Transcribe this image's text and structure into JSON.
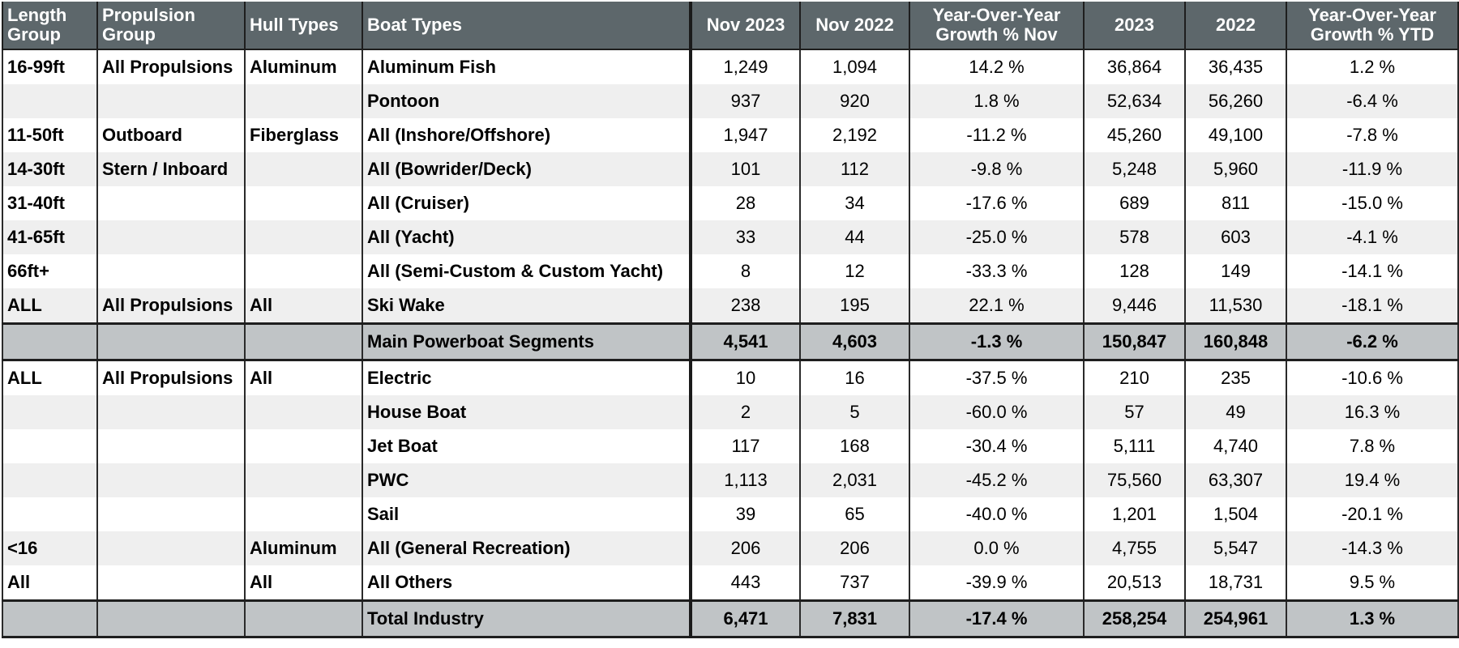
{
  "headers": [
    "Length Group",
    "Propulsion Group",
    "Hull Types",
    "Boat Types",
    "Nov 2023",
    "Nov 2022",
    "Year-Over-Year Growth % Nov",
    "2023",
    "2022",
    "Year-Over-Year Growth % YTD"
  ],
  "rows": [
    {
      "length": "16-99ft",
      "propulsion": "All Propulsions",
      "hull": "Aluminum",
      "boat": "Aluminum Fish",
      "nov2023": "1,249",
      "nov2022": "1,094",
      "yoy_nov": "14.2 %",
      "ytd2023": "36,864",
      "ytd2022": "36,435",
      "yoy_ytd": "1.2 %"
    },
    {
      "length": "",
      "propulsion": "",
      "hull": "",
      "boat": "Pontoon",
      "nov2023": "937",
      "nov2022": "920",
      "yoy_nov": "1.8 %",
      "ytd2023": "52,634",
      "ytd2022": "56,260",
      "yoy_ytd": "-6.4 %"
    },
    {
      "length": "11-50ft",
      "propulsion": "Outboard",
      "hull": "Fiberglass",
      "boat": "All (Inshore/Offshore)",
      "nov2023": "1,947",
      "nov2022": "2,192",
      "yoy_nov": "-11.2 %",
      "ytd2023": "45,260",
      "ytd2022": "49,100",
      "yoy_ytd": "-7.8 %"
    },
    {
      "length": "14-30ft",
      "propulsion": "Stern / Inboard",
      "hull": "",
      "boat": "All (Bowrider/Deck)",
      "nov2023": "101",
      "nov2022": "112",
      "yoy_nov": "-9.8 %",
      "ytd2023": "5,248",
      "ytd2022": "5,960",
      "yoy_ytd": "-11.9 %"
    },
    {
      "length": "31-40ft",
      "propulsion": "",
      "hull": "",
      "boat": "All (Cruiser)",
      "nov2023": "28",
      "nov2022": "34",
      "yoy_nov": "-17.6 %",
      "ytd2023": "689",
      "ytd2022": "811",
      "yoy_ytd": "-15.0 %"
    },
    {
      "length": "41-65ft",
      "propulsion": "",
      "hull": "",
      "boat": "All (Yacht)",
      "nov2023": "33",
      "nov2022": "44",
      "yoy_nov": "-25.0 %",
      "ytd2023": "578",
      "ytd2022": "603",
      "yoy_ytd": "-4.1 %"
    },
    {
      "length": "66ft+",
      "propulsion": "",
      "hull": "",
      "boat": "All (Semi-Custom & Custom Yacht)",
      "nov2023": "8",
      "nov2022": "12",
      "yoy_nov": "-33.3 %",
      "ytd2023": "128",
      "ytd2022": "149",
      "yoy_ytd": "-14.1 %"
    },
    {
      "length": "ALL",
      "propulsion": "All Propulsions",
      "hull": "All",
      "boat": "Ski Wake",
      "nov2023": "238",
      "nov2022": "195",
      "yoy_nov": "22.1 %",
      "ytd2023": "9,446",
      "ytd2022": "11,530",
      "yoy_ytd": "-18.1 %"
    },
    {
      "total": true,
      "length": "",
      "propulsion": "",
      "hull": "",
      "boat": "Main Powerboat Segments",
      "nov2023": "4,541",
      "nov2022": "4,603",
      "yoy_nov": "-1.3 %",
      "ytd2023": "150,847",
      "ytd2022": "160,848",
      "yoy_ytd": "-6.2 %"
    },
    {
      "length": "ALL",
      "propulsion": "All Propulsions",
      "hull": "All",
      "boat": "Electric",
      "nov2023": "10",
      "nov2022": "16",
      "yoy_nov": "-37.5 %",
      "ytd2023": "210",
      "ytd2022": "235",
      "yoy_ytd": "-10.6 %"
    },
    {
      "length": "",
      "propulsion": "",
      "hull": "",
      "boat": "House Boat",
      "nov2023": "2",
      "nov2022": "5",
      "yoy_nov": "-60.0 %",
      "ytd2023": "57",
      "ytd2022": "49",
      "yoy_ytd": "16.3 %"
    },
    {
      "length": "",
      "propulsion": "",
      "hull": "",
      "boat": "Jet Boat",
      "nov2023": "117",
      "nov2022": "168",
      "yoy_nov": "-30.4 %",
      "ytd2023": "5,111",
      "ytd2022": "4,740",
      "yoy_ytd": "7.8 %"
    },
    {
      "length": "",
      "propulsion": "",
      "hull": "",
      "boat": "PWC",
      "nov2023": "1,113",
      "nov2022": "2,031",
      "yoy_nov": "-45.2 %",
      "ytd2023": "75,560",
      "ytd2022": "63,307",
      "yoy_ytd": "19.4 %"
    },
    {
      "length": "",
      "propulsion": "",
      "hull": "",
      "boat": "Sail",
      "nov2023": "39",
      "nov2022": "65",
      "yoy_nov": "-40.0 %",
      "ytd2023": "1,201",
      "ytd2022": "1,504",
      "yoy_ytd": "-20.1 %"
    },
    {
      "length": "<16",
      "propulsion": "",
      "hull": "Aluminum",
      "boat": "All (General Recreation)",
      "nov2023": "206",
      "nov2022": "206",
      "yoy_nov": "0.0 %",
      "ytd2023": "4,755",
      "ytd2022": "5,547",
      "yoy_ytd": "-14.3 %"
    },
    {
      "length": "All",
      "propulsion": "",
      "hull": "All",
      "boat": "All Others",
      "nov2023": "443",
      "nov2022": "737",
      "yoy_nov": "-39.9 %",
      "ytd2023": "20,513",
      "ytd2022": "18,731",
      "yoy_ytd": "9.5 %"
    },
    {
      "total": true,
      "length": "",
      "propulsion": "",
      "hull": "",
      "boat": "Total Industry",
      "nov2023": "6,471",
      "nov2022": "7,831",
      "yoy_nov": "-17.4 %",
      "ytd2023": "258,254",
      "ytd2022": "254,961",
      "yoy_ytd": "1.3 %"
    }
  ]
}
